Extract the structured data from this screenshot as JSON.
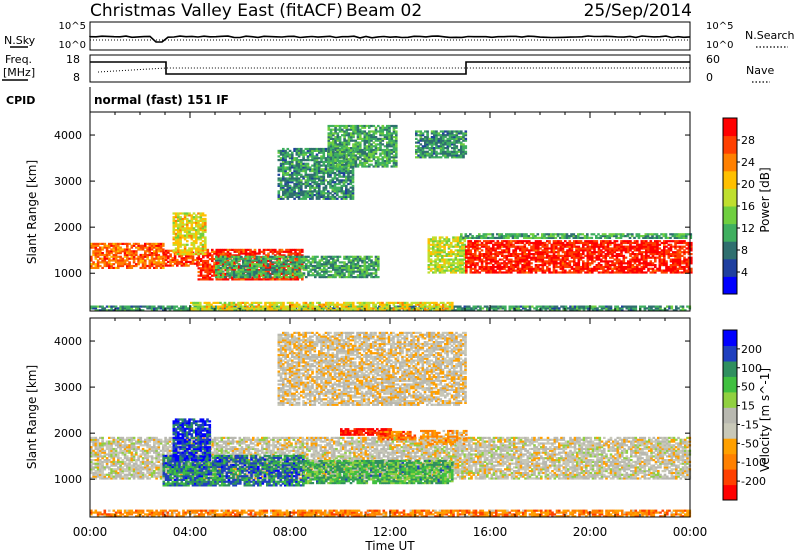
{
  "header": {
    "station": "Christmas Valley East (fitACF)",
    "beam": "Beam 02",
    "date": "25/Sep/2014"
  },
  "left_labels": {
    "nsky": "N.Sky",
    "freq_line1": "Freq.",
    "freq_line2": "[MHz]",
    "cpid": "CPID"
  },
  "right_labels": {
    "nsearch": "N.Search",
    "nave": "Nave"
  },
  "nsky_ticks": [
    "10^5",
    "10^0"
  ],
  "nsearch_ticks": [
    "10^5",
    "10^0"
  ],
  "freq_ticks": [
    "18",
    "8"
  ],
  "nave_ticks": [
    "60",
    "0"
  ],
  "cpid_text": "normal (fast) 151 IF",
  "chart_data": [
    {
      "type": "heatmap",
      "panel": "power",
      "ylabel": "Slant Range [km]",
      "xlabel": "",
      "x_range_hours": [
        0,
        24
      ],
      "ylim": [
        180,
        4500
      ],
      "y_ticks": [
        1000,
        2000,
        3000,
        4000
      ],
      "colorbar": {
        "label": "Power [dB]",
        "ticks": [
          "28",
          "24",
          "20",
          "16",
          "12",
          "8",
          "4"
        ],
        "colors": [
          "#0000ff",
          "#1f3f9f",
          "#2f6f6f",
          "#3faf5f",
          "#6fcf3f",
          "#bfdf2f",
          "#ffc000",
          "#ff8000",
          "#ff4000",
          "#ff0000"
        ]
      },
      "bands": [
        {
          "t0": 0.0,
          "t1": 2.9,
          "r0": 1100,
          "r1": 1650,
          "level": 0.8
        },
        {
          "t0": 2.9,
          "t1": 4.3,
          "r0": 1150,
          "r1": 1500,
          "level": 0.85
        },
        {
          "t0": 4.3,
          "t1": 8.5,
          "r0": 850,
          "r1": 1500,
          "level": 0.9
        },
        {
          "t0": 3.3,
          "t1": 4.6,
          "r0": 1400,
          "r1": 2300,
          "level": 0.6
        },
        {
          "t0": 5.0,
          "t1": 11.5,
          "r0": 900,
          "r1": 1350,
          "level": 0.35
        },
        {
          "t0": 7.5,
          "t1": 10.5,
          "r0": 2600,
          "r1": 3700,
          "level": 0.3
        },
        {
          "t0": 9.5,
          "t1": 12.2,
          "r0": 3300,
          "r1": 4200,
          "level": 0.35
        },
        {
          "t0": 13.0,
          "t1": 15.0,
          "r0": 3500,
          "r1": 4100,
          "level": 0.3
        },
        {
          "t0": 13.5,
          "t1": 15.0,
          "r0": 1000,
          "r1": 1800,
          "level": 0.55
        },
        {
          "t0": 14.8,
          "t1": 24.0,
          "r0": 1750,
          "r1": 1850,
          "level": 0.35
        },
        {
          "t0": 15.0,
          "t1": 24.0,
          "r0": 1000,
          "r1": 1700,
          "level": 0.92
        },
        {
          "t0": 0.0,
          "t1": 24.0,
          "r0": 180,
          "r1": 300,
          "level": 0.3
        },
        {
          "t0": 4.0,
          "t1": 14.5,
          "r0": 180,
          "r1": 350,
          "level": 0.6
        }
      ]
    },
    {
      "type": "heatmap",
      "panel": "velocity",
      "ylabel": "Slant Range [km]",
      "xlabel": "Time UT",
      "x_range_hours": [
        0,
        24
      ],
      "x_tick_labels": [
        "00:00",
        "04:00",
        "08:00",
        "12:00",
        "16:00",
        "20:00",
        "00:00"
      ],
      "ylim": [
        180,
        4500
      ],
      "y_ticks": [
        1000,
        2000,
        3000,
        4000
      ],
      "colorbar": {
        "label": "Velocity [m s^-1]",
        "ticks": [
          "200",
          "100",
          "50",
          "15",
          "-15",
          "-50",
          "-100",
          "-200"
        ],
        "colors": [
          "#ff0000",
          "#ff4000",
          "#ff8000",
          "#ffa000",
          "#c8c8b8",
          "#b8b8b0",
          "#90d040",
          "#40c040",
          "#2f8f5f",
          "#1f3fbf",
          "#0000ff"
        ]
      },
      "bands": [
        {
          "t0": 0.0,
          "t1": 24.0,
          "r0": 1000,
          "r1": 1900,
          "level": 0.45
        },
        {
          "t0": 2.9,
          "t1": 8.5,
          "r0": 850,
          "r1": 1500,
          "level": 0.8
        },
        {
          "t0": 3.3,
          "t1": 4.8,
          "r0": 1400,
          "r1": 2300,
          "level": 0.88
        },
        {
          "t0": 8.5,
          "t1": 14.5,
          "r0": 900,
          "r1": 1400,
          "level": 0.7
        },
        {
          "t0": 10.0,
          "t1": 12.0,
          "r0": 1950,
          "r1": 2100,
          "level": 0.05
        },
        {
          "t0": 11.5,
          "t1": 13.0,
          "r0": 1850,
          "r1": 2050,
          "level": 0.2
        },
        {
          "t0": 13.2,
          "t1": 15.0,
          "r0": 1750,
          "r1": 2050,
          "level": 0.3
        },
        {
          "t0": 7.5,
          "t1": 15.0,
          "r0": 2600,
          "r1": 4200,
          "level": 0.42
        },
        {
          "t0": 0.0,
          "t1": 24.0,
          "r0": 180,
          "r1": 320,
          "level": 0.25
        }
      ]
    }
  ]
}
